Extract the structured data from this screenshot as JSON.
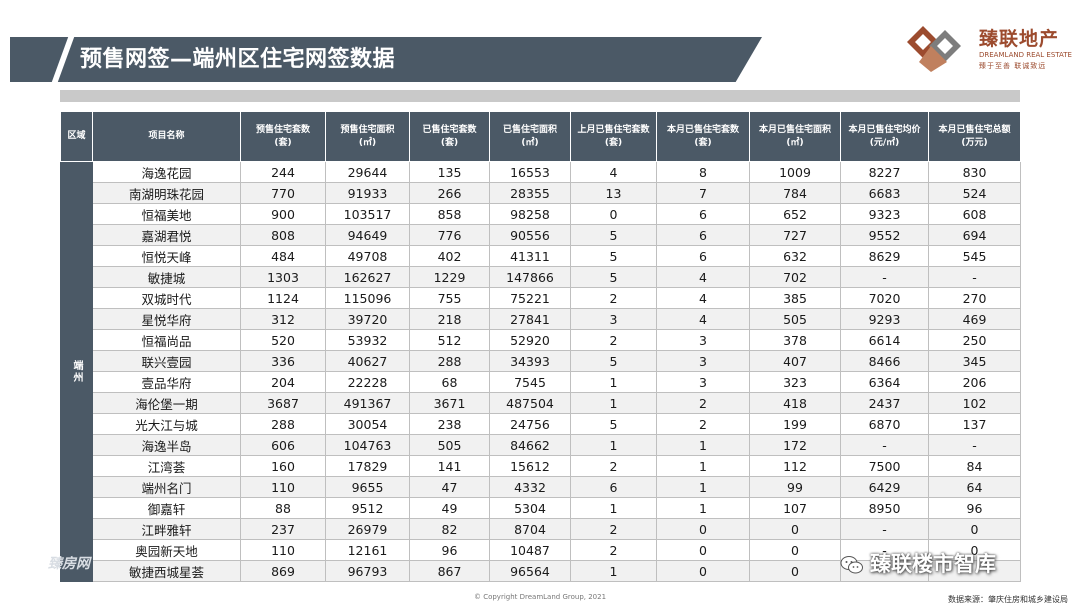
{
  "header": {
    "title": "预售网签—端州区住宅网签数据"
  },
  "logo": {
    "name": "臻联地产",
    "en": "DREAMLAND REAL ESTATE",
    "slogan": "臻于至善 联诚致远"
  },
  "table": {
    "headers": [
      "区域",
      "项目名称",
      "预售住宅套数\n(套)",
      "预售住宅面积\n(㎡)",
      "已售住宅套数\n(套)",
      "已售住宅面积\n(㎡)",
      "上月已售住宅套数\n(套)",
      "本月已售住宅套数\n(套)",
      "本月已售住宅面积\n(㎡)",
      "本月已售住宅均价\n(元/㎡)",
      "本月已售住宅总额\n(万元)"
    ],
    "region": "端州",
    "rows": [
      [
        "海逸花园",
        "244",
        "29644",
        "135",
        "16553",
        "4",
        "8",
        "1009",
        "8227",
        "830"
      ],
      [
        "南湖明珠花园",
        "770",
        "91933",
        "266",
        "28355",
        "13",
        "7",
        "784",
        "6683",
        "524"
      ],
      [
        "恒福美地",
        "900",
        "103517",
        "858",
        "98258",
        "0",
        "6",
        "652",
        "9323",
        "608"
      ],
      [
        "嘉湖君悦",
        "808",
        "94649",
        "776",
        "90556",
        "5",
        "6",
        "727",
        "9552",
        "694"
      ],
      [
        "恒悦天峰",
        "484",
        "49708",
        "402",
        "41311",
        "5",
        "6",
        "632",
        "8629",
        "545"
      ],
      [
        "敏捷城",
        "1303",
        "162627",
        "1229",
        "147866",
        "5",
        "4",
        "702",
        "-",
        "-"
      ],
      [
        "双城时代",
        "1124",
        "115096",
        "755",
        "75221",
        "2",
        "4",
        "385",
        "7020",
        "270"
      ],
      [
        "星悦华府",
        "312",
        "39720",
        "218",
        "27841",
        "3",
        "4",
        "505",
        "9293",
        "469"
      ],
      [
        "恒福尚品",
        "520",
        "53932",
        "512",
        "52920",
        "2",
        "3",
        "378",
        "6614",
        "250"
      ],
      [
        "联兴壹园",
        "336",
        "40627",
        "288",
        "34393",
        "5",
        "3",
        "407",
        "8466",
        "345"
      ],
      [
        "壹品华府",
        "204",
        "22228",
        "68",
        "7545",
        "1",
        "3",
        "323",
        "6364",
        "206"
      ],
      [
        "海伦堡一期",
        "3687",
        "491367",
        "3671",
        "487504",
        "1",
        "2",
        "418",
        "2437",
        "102"
      ],
      [
        "光大江与城",
        "288",
        "30054",
        "238",
        "24756",
        "5",
        "2",
        "199",
        "6870",
        "137"
      ],
      [
        "海逸半岛",
        "606",
        "104763",
        "505",
        "84662",
        "1",
        "1",
        "172",
        "-",
        "-"
      ],
      [
        "江湾荟",
        "160",
        "17829",
        "141",
        "15612",
        "2",
        "1",
        "112",
        "7500",
        "84"
      ],
      [
        "端州名门",
        "110",
        "9655",
        "47",
        "4332",
        "6",
        "1",
        "99",
        "6429",
        "64"
      ],
      [
        "御嘉轩",
        "88",
        "9512",
        "49",
        "5304",
        "1",
        "1",
        "107",
        "8950",
        "96"
      ],
      [
        "江畔雅轩",
        "237",
        "26979",
        "82",
        "8704",
        "2",
        "0",
        "0",
        "-",
        "0"
      ],
      [
        "奥园新天地",
        "110",
        "12161",
        "96",
        "10487",
        "2",
        "0",
        "0",
        "-",
        "0"
      ],
      [
        "敏捷西城星荟",
        "869",
        "96793",
        "867",
        "96564",
        "1",
        "0",
        "0",
        "",
        ""
      ]
    ]
  },
  "footer": {
    "copyright": "© Copyright  DreamLand  Group,  2021",
    "source": "数据来源：肇庆住房和城乡建设局"
  },
  "watermark": {
    "account": "臻联楼市智库",
    "corner": "臻房网"
  },
  "colors": {
    "header_bg": "#4b5966",
    "brand": "#9c4b2e",
    "grey_bar": "#c9c9c9"
  }
}
